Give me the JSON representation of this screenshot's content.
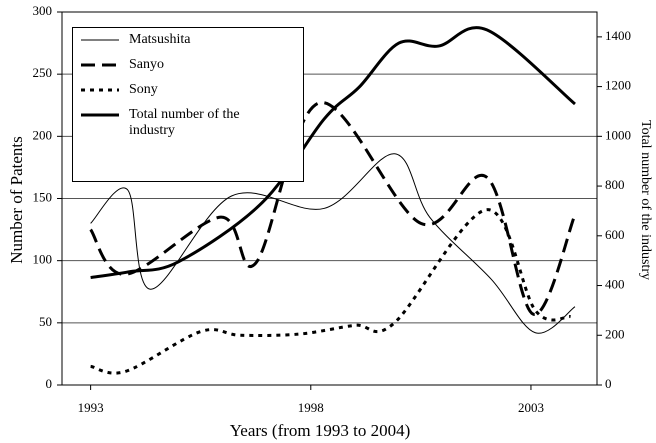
{
  "chart_data": {
    "type": "line",
    "xlabel": "Years (from 1993 to 2004)",
    "ylabel": "Number of Patents",
    "y2label": "Total number of the industry",
    "xlim": [
      1992.35,
      2004.5
    ],
    "xticks": [
      1993,
      1998,
      2003
    ],
    "ylim": [
      0,
      300
    ],
    "yticks": [
      0,
      50,
      100,
      150,
      200,
      250,
      300
    ],
    "y2lim": [
      0,
      1500
    ],
    "y2ticks": [
      0,
      200,
      400,
      600,
      800,
      1000,
      1200,
      1400
    ],
    "grid": true,
    "legend": "upper left",
    "series": [
      {
        "name": "Matsushita",
        "color": "#000000",
        "style": "solid",
        "width": 1,
        "x": [
          1993,
          1993.84,
          1994.36,
          1996.2,
          1998.3,
          1999.9,
          2000.7,
          2002.1,
          2003.1,
          2004.0
        ],
        "values": [
          130,
          157,
          77,
          152,
          142,
          186,
          135,
          85,
          42,
          63
        ]
      },
      {
        "name": "Sanyo",
        "color": "#000000",
        "style": "dashed",
        "width": 3,
        "x": [
          1993,
          1993.8,
          1995.95,
          1996.75,
          1998.2,
          2000.5,
          2002.0,
          2003.05,
          2004.0
        ],
        "values": [
          125,
          89,
          135,
          98,
          227,
          130,
          167,
          57,
          137
        ]
      },
      {
        "name": "Sony",
        "color": "#000000",
        "style": "dotted",
        "width": 3,
        "x": [
          1993,
          1993.8,
          1995.5,
          1996.4,
          1997.75,
          1999.0,
          1999.9,
          2002.0,
          2003.1,
          2003.9
        ],
        "values": [
          15,
          11,
          43,
          40,
          41,
          48,
          50,
          141,
          60,
          55
        ]
      },
      {
        "name": "Total number of the industry",
        "color": "#000000",
        "style": "solid",
        "width": 3,
        "axis": "y2",
        "x": [
          1993,
          1993.9,
          1995.0,
          1996.9,
          1998.3,
          1999.1,
          2000.0,
          2000.9,
          2002.0,
          2004.0
        ],
        "values": [
          432,
          456,
          496,
          734,
          1069,
          1198,
          1375,
          1363,
          1428,
          1130
        ]
      }
    ]
  }
}
